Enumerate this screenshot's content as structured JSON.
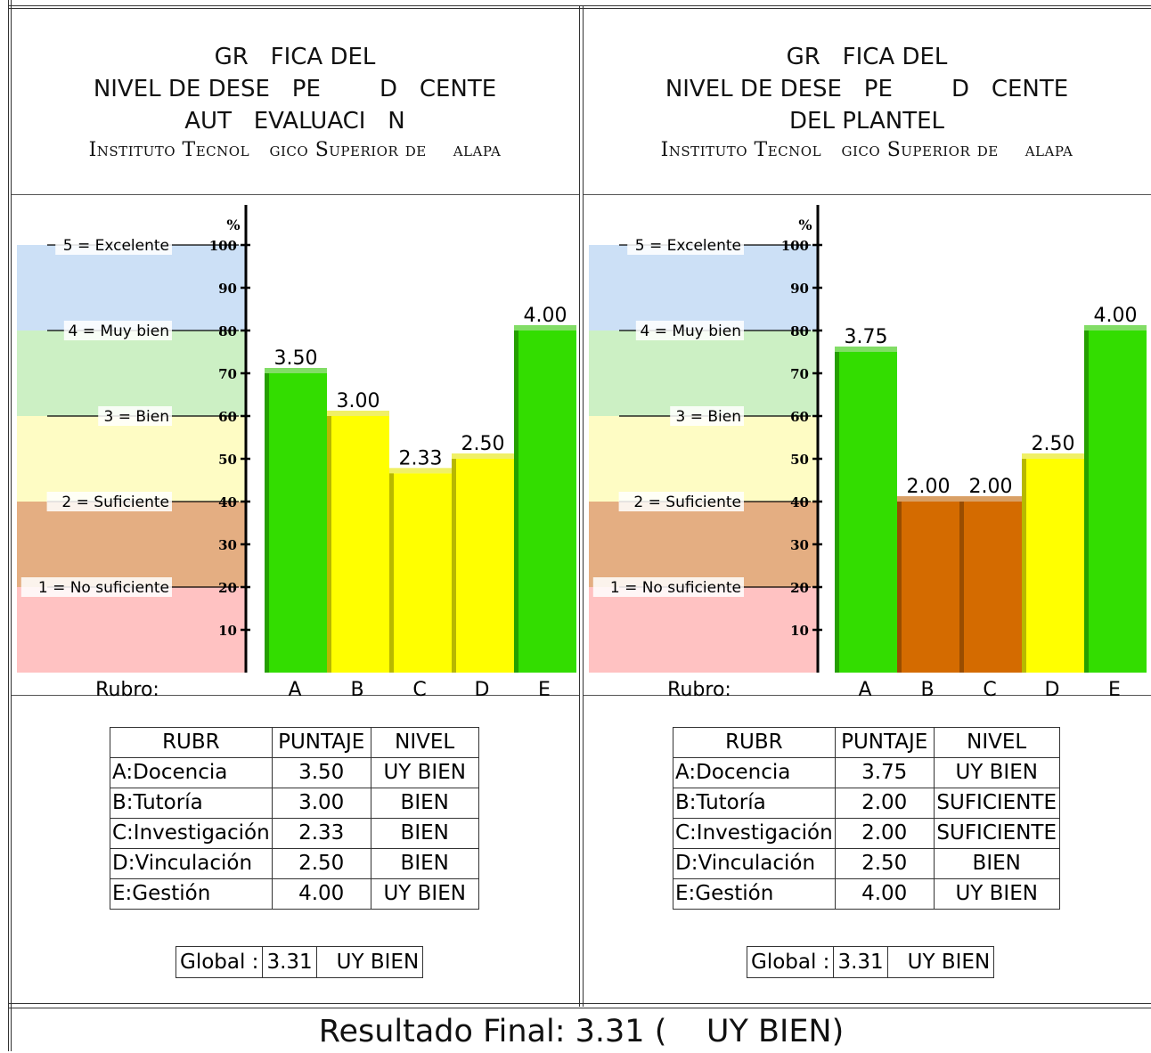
{
  "scale": {
    "unit_label": "%",
    "ticks": [
      100,
      90,
      80,
      70,
      60,
      50,
      40,
      30,
      20,
      10
    ],
    "levels": [
      {
        "label": "5 = Excelente",
        "pct": 100
      },
      {
        "label": "4 = Muy bien",
        "pct": 80
      },
      {
        "label": "3 = Bien",
        "pct": 60
      },
      {
        "label": "2 = Suficiente",
        "pct": 40
      },
      {
        "label": "1 = No suficiente",
        "pct": 20
      }
    ],
    "band_colors": {
      "excelente": "#cce0f6",
      "muy_bien": "#ccf0c4",
      "bien": "#fefcc4",
      "suficiente": "#e4ae82",
      "no_suficiente": "#ffc2c2"
    }
  },
  "level_colors": {
    "green": "#33dd00",
    "yellow": "#ffff00",
    "orange": "#d46b00"
  },
  "panels": [
    {
      "title_lines": [
        "GR   FICA DEL",
        "NIVEL DE DESE   PE        D   CENTE",
        "AUT   EVALUACI   N"
      ],
      "institution": "Instituto Tecnol   gico Superior de    alapa",
      "rubro_label": "Rubro:",
      "table_headers": [
        "RUBR",
        "PUNTAJE",
        "NIVEL"
      ],
      "rows": [
        {
          "rubro": "A:Docencia",
          "puntaje": "3.50",
          "nivel": "UY BIEN"
        },
        {
          "rubro": "B:Tutoría",
          "puntaje": "3.00",
          "nivel": "BIEN"
        },
        {
          "rubro": "C:Investigación",
          "puntaje": "2.33",
          "nivel": "BIEN"
        },
        {
          "rubro": "D:Vinculación",
          "puntaje": "2.50",
          "nivel": "BIEN"
        },
        {
          "rubro": "E:Gestión",
          "puntaje": "4.00",
          "nivel": "UY BIEN"
        }
      ],
      "global_label": "Global :",
      "global_value": "3.31",
      "global_level": "UY BIEN"
    },
    {
      "title_lines": [
        "GR   FICA DEL",
        "NIVEL DE DESE   PE        D   CENTE",
        "DEL PLANTEL"
      ],
      "institution": "Instituto Tecnol   gico Superior de    alapa",
      "rubro_label": "Rubro:",
      "table_headers": [
        "RUBR",
        "PUNTAJE",
        "NIVEL"
      ],
      "rows": [
        {
          "rubro": "A:Docencia",
          "puntaje": "3.75",
          "nivel": "UY BIEN"
        },
        {
          "rubro": "B:Tutoría",
          "puntaje": "2.00",
          "nivel": "SUFICIENTE"
        },
        {
          "rubro": "C:Investigación",
          "puntaje": "2.00",
          "nivel": "SUFICIENTE"
        },
        {
          "rubro": "D:Vinculación",
          "puntaje": "2.50",
          "nivel": "BIEN"
        },
        {
          "rubro": "E:Gestión",
          "puntaje": "4.00",
          "nivel": "UY BIEN"
        }
      ],
      "global_label": "Global :",
      "global_value": "3.31",
      "global_level": "UY BIEN"
    }
  ],
  "final_result": "Resultado Final: 3.31 (    UY BIEN)",
  "chart_data": [
    {
      "type": "bar",
      "categories": [
        "A",
        "B",
        "C",
        "D",
        "E"
      ],
      "values": [
        3.5,
        3.0,
        2.33,
        2.5,
        4.0
      ],
      "value_labels": [
        "3.50",
        "3.00",
        "2.33",
        "2.50",
        "4.00"
      ],
      "pct_values": [
        70,
        60,
        46.6,
        50,
        80
      ],
      "colors": [
        "green",
        "yellow",
        "yellow",
        "yellow",
        "green"
      ],
      "title": "GR   FICA DEL NIVEL DE DESE   PE        D   CENTE AUT   EVALUACI   N",
      "xlabel": "Rubro:",
      "ylabel": "%",
      "ylim": [
        0,
        100
      ]
    },
    {
      "type": "bar",
      "categories": [
        "A",
        "B",
        "C",
        "D",
        "E"
      ],
      "values": [
        3.75,
        2.0,
        2.0,
        2.5,
        4.0
      ],
      "value_labels": [
        "3.75",
        "2.00",
        "2.00",
        "2.50",
        "4.00"
      ],
      "pct_values": [
        75,
        40,
        40,
        50,
        80
      ],
      "colors": [
        "green",
        "orange",
        "orange",
        "yellow",
        "green"
      ],
      "title": "GR   FICA DEL NIVEL DE DESE   PE        D   CENTE DEL PLANTEL",
      "xlabel": "Rubro:",
      "ylabel": "%",
      "ylim": [
        0,
        100
      ]
    }
  ]
}
